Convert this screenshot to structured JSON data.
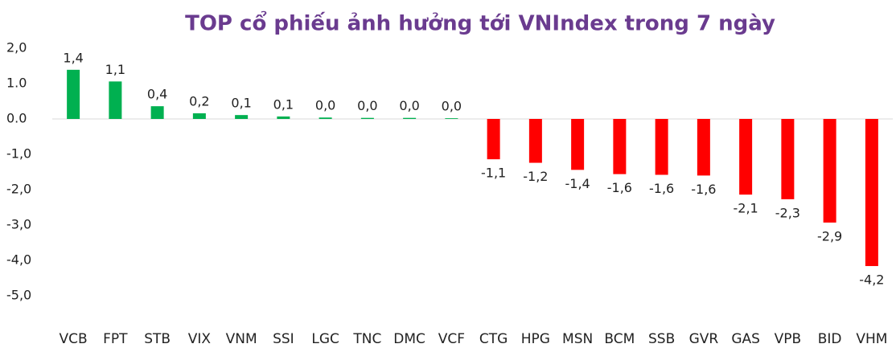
{
  "chart_data": {
    "type": "bar",
    "title": "TOP cổ phiếu ảnh hưởng tới VNIndex trong 7 ngày",
    "categories": [
      "VCB",
      "FPT",
      "STB",
      "VIX",
      "VNM",
      "SSI",
      "LGC",
      "TNC",
      "DMC",
      "VCF",
      "CTG",
      "HPG",
      "MSN",
      "BCM",
      "SSB",
      "GVR",
      "GAS",
      "VPB",
      "BID",
      "VHM"
    ],
    "values": [
      1.39,
      1.06,
      0.36,
      0.16,
      0.11,
      0.07,
      0.04,
      0.03,
      0.03,
      0.02,
      -1.14,
      -1.24,
      -1.44,
      -1.56,
      -1.58,
      -1.6,
      -2.14,
      -2.27,
      -2.93,
      -4.16
    ],
    "value_labels": [
      "1,4",
      "1,1",
      "0,4",
      "0,2",
      "0,1",
      "0,1",
      "0,0",
      "0,0",
      "0,0",
      "0,0",
      "-1,1",
      "-1,2",
      "-1,4",
      "-1,6",
      "-1,6",
      "-1,6",
      "-2,1",
      "-2,3",
      "-2,9",
      "-4,2"
    ],
    "positive_color": "#00b050",
    "negative_color": "#ff0000",
    "ylim": [
      -5,
      2
    ],
    "yticks": [
      {
        "value": 2,
        "label": "2,0"
      },
      {
        "value": 1,
        "label": "1.0"
      },
      {
        "value": 0,
        "label": "0.0"
      },
      {
        "value": -1,
        "label": "-1,0"
      },
      {
        "value": -2,
        "label": "-2,0"
      },
      {
        "value": -3,
        "label": "-3,0"
      },
      {
        "value": -4,
        "label": "-4,0"
      },
      {
        "value": -5,
        "label": "-5,0"
      }
    ],
    "grid": false
  }
}
